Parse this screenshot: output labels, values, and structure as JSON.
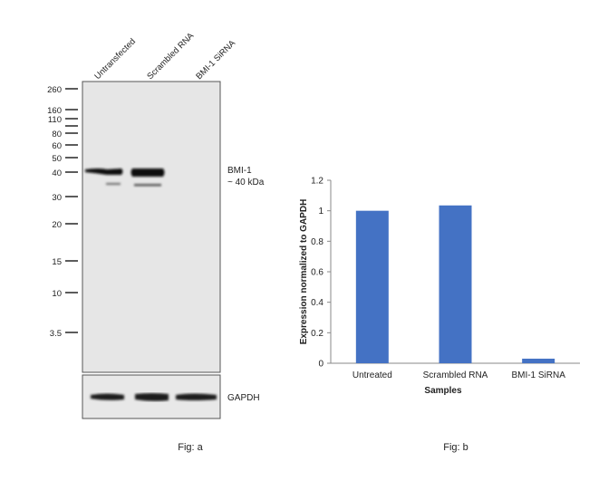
{
  "figure_a": {
    "caption": "Fig: a",
    "lanes": [
      "Untransfected",
      "Scrambled RNA",
      "BMI-1 SiRNA"
    ],
    "markers": [
      "260",
      "160",
      "110",
      "80",
      "60",
      "50",
      "40",
      "30",
      "20",
      "15",
      "10",
      "3.5"
    ],
    "band_label_line1": "BMI-1",
    "band_label_line2": "~ 40 kDa",
    "loading_control_label": "GAPDH"
  },
  "figure_b": {
    "caption": "Fig: b"
  },
  "chart_data": {
    "type": "bar",
    "title": "",
    "categories": [
      "Untreated",
      "Scrambled RNA",
      "BMI-1 SiRNA"
    ],
    "values": [
      1.0,
      1.035,
      0.03
    ],
    "xlabel": "Samples",
    "ylabel": "Expression normalized to GAPDH",
    "ylim": [
      0,
      1.2
    ],
    "yticks": [
      "0",
      "0.2",
      "0.4",
      "0.6",
      "0.8",
      "1",
      "1.2"
    ],
    "grid": false,
    "bar_color": "#4472C4"
  }
}
